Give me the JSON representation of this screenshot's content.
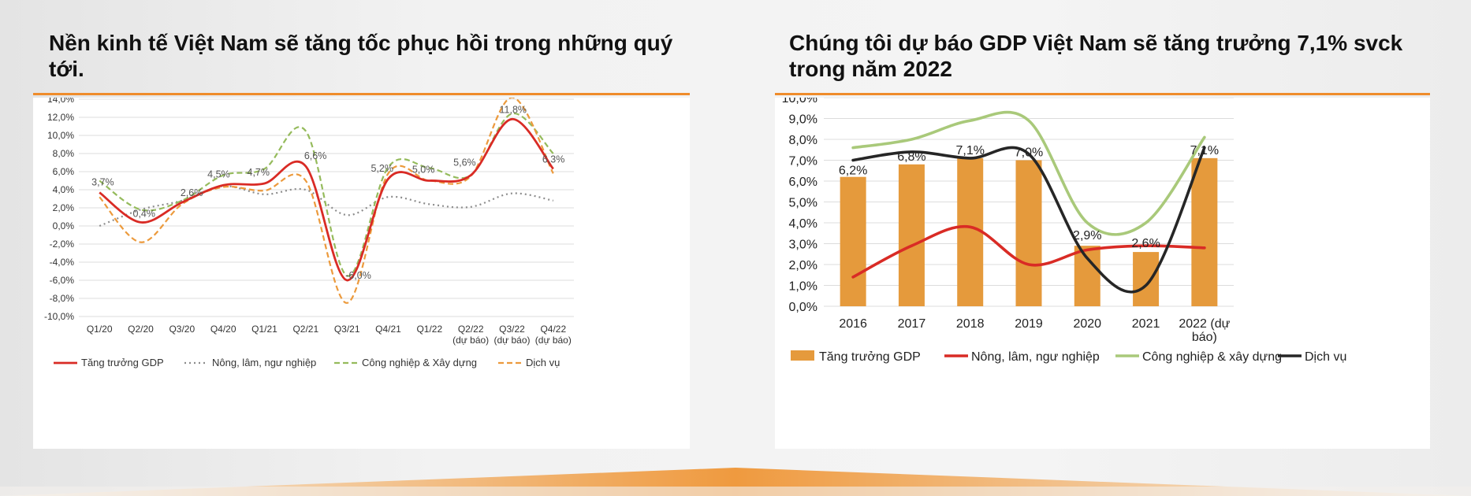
{
  "left_panel": {
    "title": "Nền kinh tế Việt Nam sẽ tăng tốc phục hồi trong những quý tới."
  },
  "right_panel": {
    "title": "Chúng tôi dự báo GDP Việt Nam sẽ tăng trưởng 7,1% svck trong năm 2022"
  },
  "colors": {
    "accent": "#ef8c2b",
    "gdp_red": "#d92b25",
    "agri_gray": "#8c8c8c",
    "industry_green": "#95bb5c",
    "service_orange": "#ec9a3c",
    "bar_orange": "#e59a3c",
    "service_black": "#262626",
    "industry_green_light": "#a9c97a"
  },
  "chart_data": [
    {
      "type": "line",
      "categories": [
        "Q1/20",
        "Q2/20",
        "Q3/20",
        "Q4/20",
        "Q1/21",
        "Q2/21",
        "Q3/21",
        "Q4/21",
        "Q1/22",
        "Q2/22\n(dự báo)",
        "Q3/22\n(dự báo)",
        "Q4/22\n(dự báo)"
      ],
      "ylim": [
        -10,
        14
      ],
      "ytick_step": 2,
      "ytick_labels": [
        "-10,0%",
        "-8,0%",
        "-6,0%",
        "-4,0%",
        "-2,0%",
        "0,0%",
        "2,0%",
        "4,0%",
        "6,0%",
        "8,0%",
        "10,0%",
        "12,0%",
        "14,0%"
      ],
      "series": [
        {
          "name": "Tăng trưởng GDP",
          "style": "solid",
          "color": "#d92b25",
          "values": [
            3.7,
            0.4,
            2.6,
            4.5,
            4.7,
            6.6,
            -6.0,
            5.2,
            5.0,
            5.6,
            11.8,
            6.3
          ]
        },
        {
          "name": "Nông, lâm, ngư nghiệp",
          "style": "dotted",
          "color": "#8c8c8c",
          "values": [
            0.0,
            1.8,
            2.8,
            4.4,
            3.5,
            4.0,
            1.2,
            3.2,
            2.4,
            2.1,
            3.6,
            2.8
          ]
        },
        {
          "name": "Công nghiệp & Xây dựng",
          "style": "dashed",
          "color": "#95bb5c",
          "values": [
            5.0,
            1.8,
            2.8,
            5.6,
            6.3,
            10.5,
            -5.5,
            6.5,
            6.4,
            5.6,
            12.4,
            8.0
          ]
        },
        {
          "name": "Dịch vụ",
          "style": "dashed",
          "color": "#ec9a3c",
          "values": [
            3.2,
            -1.8,
            2.4,
            4.3,
            3.9,
            5.0,
            -8.5,
            5.8,
            5.0,
            5.5,
            14.2,
            5.8
          ]
        }
      ],
      "data_labels": [
        "3,7%",
        "0,4%",
        "2,6%",
        "4,5%",
        "4,7%",
        "6,6%",
        "-6,0%",
        "5,2%",
        "5,0%",
        "5,6%",
        "11,8%",
        "6,3%"
      ],
      "legend": "bottom"
    },
    {
      "type": "bar+line",
      "categories": [
        "2016",
        "2017",
        "2018",
        "2019",
        "2020",
        "2021",
        "2022 (dự\nbáo)"
      ],
      "ylim": [
        0,
        10
      ],
      "ytick_step": 1,
      "ytick_labels": [
        "0,0%",
        "1,0%",
        "2,0%",
        "3,0%",
        "4,0%",
        "5,0%",
        "6,0%",
        "7,0%",
        "8,0%",
        "9,0%",
        "10,0%"
      ],
      "bars": {
        "name": "Tăng trưởng GDP",
        "color": "#e59a3c",
        "values": [
          6.2,
          6.8,
          7.1,
          7.0,
          2.9,
          2.6,
          7.1
        ]
      },
      "bar_labels": [
        "6,2%",
        "6,8%",
        "7,1%",
        "7,0%",
        "2,9%",
        "2,6%",
        "7,1%"
      ],
      "series": [
        {
          "name": "Nông, lâm, ngư nghiệp",
          "color": "#d92b25",
          "values": [
            1.4,
            2.9,
            3.8,
            2.0,
            2.7,
            2.9,
            2.8
          ]
        },
        {
          "name": "Công nghiệp & xây dựng",
          "color": "#a9c97a",
          "values": [
            7.6,
            8.0,
            8.9,
            8.9,
            4.0,
            4.0,
            8.1
          ]
        },
        {
          "name": "Dịch vụ",
          "color": "#262626",
          "values": [
            7.0,
            7.4,
            7.1,
            7.3,
            2.3,
            1.0,
            7.6
          ]
        }
      ],
      "legend": "bottom"
    }
  ]
}
